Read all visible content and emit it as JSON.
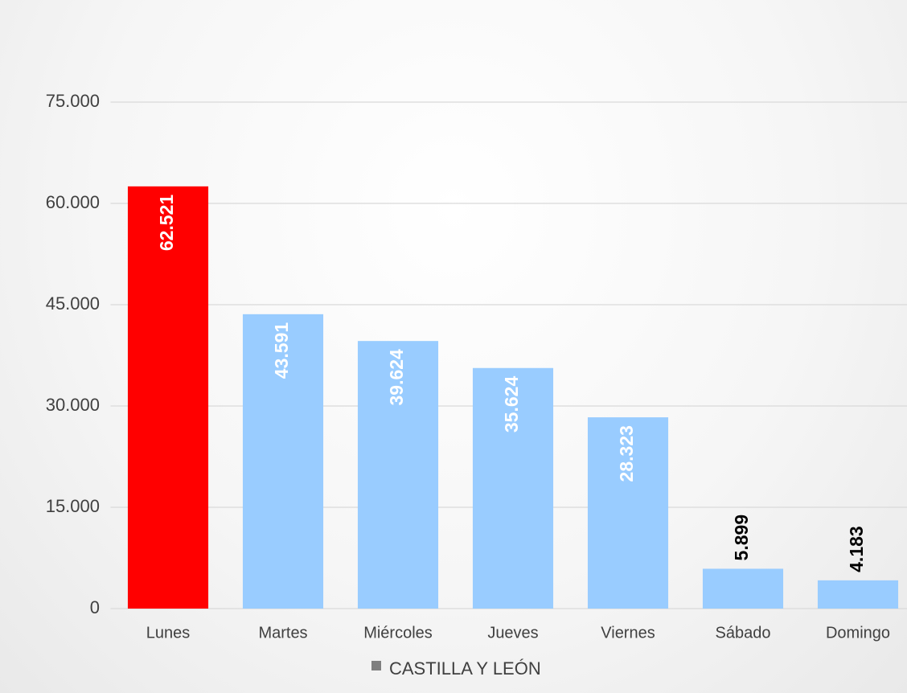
{
  "chart_data": {
    "type": "bar",
    "categories": [
      "Lunes",
      "Martes",
      "Miércoles",
      "Jueves",
      "Viernes",
      "Sábado",
      "Domingo"
    ],
    "series": [
      {
        "name": "CASTILLA Y LEÓN",
        "color": "#7f7f7f",
        "values": [
          62521,
          43591,
          39624,
          35624,
          28323,
          5899,
          4183
        ],
        "value_labels": [
          "62.521",
          "43.591",
          "39.624",
          "35.624",
          "28.323",
          "5.899",
          "4.183"
        ],
        "point_colors": [
          "#ff0000",
          "#99ccff",
          "#99ccff",
          "#99ccff",
          "#99ccff",
          "#99ccff",
          "#99ccff"
        ]
      }
    ],
    "ylim": [
      0,
      75000
    ],
    "yticks": [
      0,
      {
        "value": 15000,
        "label": "15.000"
      },
      {
        "value": 30000,
        "label": "30.000"
      },
      {
        "value": 45000,
        "label": "45.000"
      },
      {
        "value": 60000,
        "label": "60.000"
      },
      {
        "value": 75000,
        "label": "75.000"
      }
    ],
    "grid": true,
    "legend": "bottom"
  }
}
